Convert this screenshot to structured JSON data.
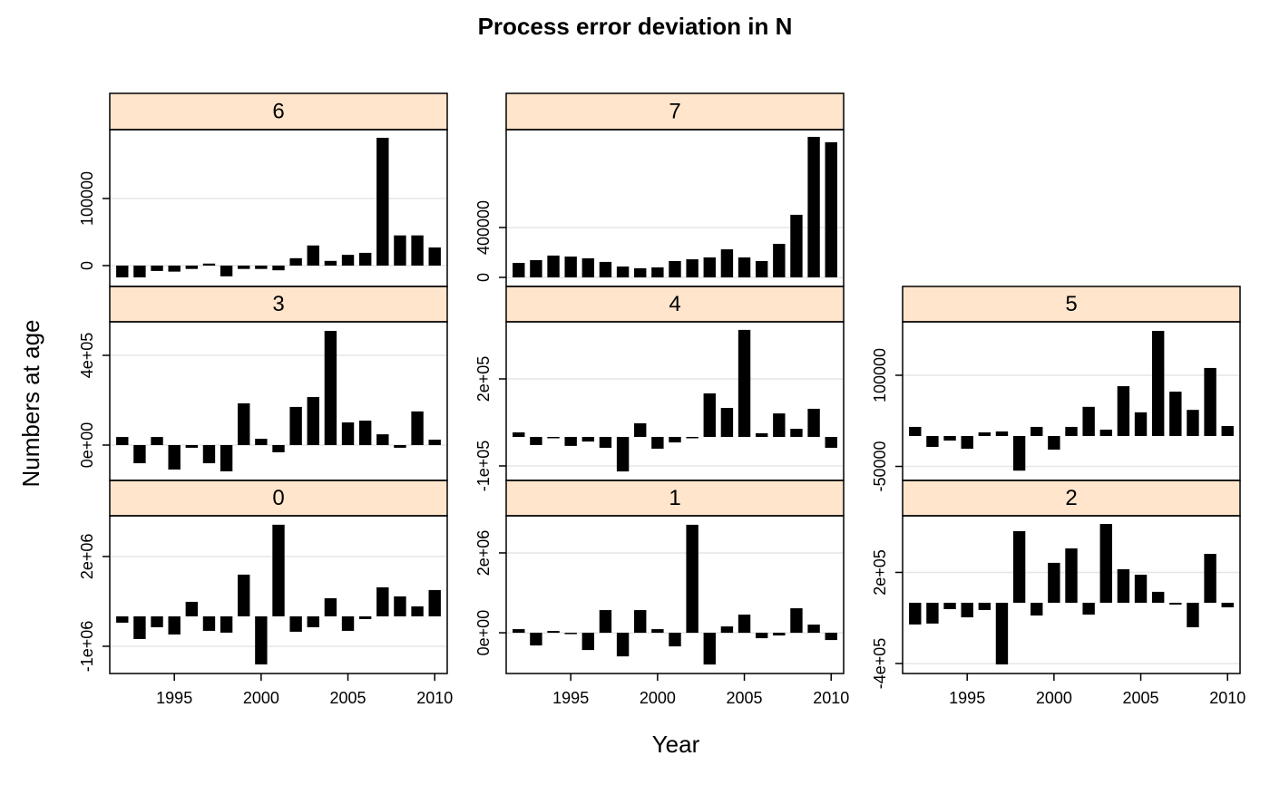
{
  "title": "Process error deviation in N",
  "x_label": "Year",
  "y_label": "Numbers at age",
  "chart_data": [
    {
      "type": "bar",
      "title": "0",
      "color": "#000000",
      "grid": true,
      "x": [
        1992,
        1993,
        1994,
        1995,
        1996,
        1997,
        1998,
        1999,
        2000,
        2001,
        2002,
        2003,
        2004,
        2005,
        2006,
        2007,
        2008,
        2009,
        2010
      ],
      "values": [
        -212000,
        -758000,
        -364000,
        -606000,
        485000,
        -485000,
        -545000,
        1394000,
        -1606000,
        3061000,
        -515000,
        -364000,
        606000,
        -485000,
        -91000,
        970000,
        667000,
        333000,
        879000
      ],
      "xlim": [
        1991.28,
        2010.72
      ],
      "xticks": [
        1995,
        2000,
        2005,
        2010
      ],
      "ylim": [
        -1910000,
        3360000
      ],
      "yticks": [
        {
          "value": -1000000,
          "label": "-1e+06"
        },
        {
          "value": 2000000,
          "label": "2e+06"
        }
      ]
    },
    {
      "type": "bar",
      "title": "1",
      "color": "#000000",
      "grid": true,
      "x": [
        1992,
        1993,
        1994,
        1995,
        1996,
        1997,
        1998,
        1999,
        2000,
        2001,
        2002,
        2003,
        2004,
        2005,
        2006,
        2007,
        2008,
        2009,
        2010
      ],
      "values": [
        91000,
        -318000,
        45000,
        -23000,
        -432000,
        568000,
        -591000,
        568000,
        91000,
        -341000,
        2705000,
        -795000,
        159000,
        455000,
        -136000,
        -68000,
        614000,
        205000,
        -182000
      ],
      "xlim": [
        1991.28,
        2010.72
      ],
      "xticks": [
        1995,
        2000,
        2005,
        2010
      ],
      "ylim": [
        -1020000,
        2930000
      ],
      "yticks": [
        {
          "value": 0,
          "label": "0e+00"
        },
        {
          "value": 2000000,
          "label": "2e+06"
        }
      ]
    },
    {
      "type": "bar",
      "title": "2",
      "color": "#000000",
      "grid": true,
      "x": [
        1992,
        1993,
        1994,
        1995,
        1996,
        1997,
        1998,
        1999,
        2000,
        2001,
        2002,
        2003,
        2004,
        2005,
        2006,
        2007,
        2008,
        2009,
        2010
      ],
      "values": [
        -143000,
        -137000,
        -42000,
        -96000,
        -48000,
        -406000,
        472000,
        -84000,
        263000,
        358000,
        -78000,
        519000,
        221000,
        185000,
        72000,
        -12000,
        -161000,
        322000,
        -30000
      ],
      "xlim": [
        1991.28,
        2010.72
      ],
      "xticks": [
        1995,
        2000,
        2005,
        2010
      ],
      "ylim": [
        -466000,
        573000
      ],
      "yticks": [
        {
          "value": -400000,
          "label": "-4e+05"
        },
        {
          "value": 200000,
          "label": "2e+05"
        }
      ]
    },
    {
      "type": "bar",
      "title": "3",
      "color": "#000000",
      "grid": true,
      "x": [
        1992,
        1993,
        1994,
        1995,
        1996,
        1997,
        1998,
        1999,
        2000,
        2001,
        2002,
        2003,
        2004,
        2005,
        2006,
        2007,
        2008,
        2009,
        2010
      ],
      "values": [
        36000,
        -81000,
        36000,
        -109000,
        -12000,
        -81000,
        -117000,
        186000,
        28000,
        -32000,
        170000,
        214000,
        509000,
        101000,
        109000,
        48000,
        -12000,
        150000,
        24000
      ],
      "xlim": [
        1991.28,
        2010.72
      ],
      "ylim": [
        -157600,
        549500
      ],
      "yticks": [
        {
          "value": 0,
          "label": "0e+00"
        },
        {
          "value": 400000,
          "label": "4e+05"
        }
      ]
    },
    {
      "type": "bar",
      "title": "4",
      "color": "#000000",
      "grid": true,
      "x": [
        1992,
        1993,
        1994,
        1995,
        1996,
        1997,
        1998,
        1999,
        2000,
        2001,
        2002,
        2003,
        2004,
        2005,
        2006,
        2007,
        2008,
        2009,
        2010
      ],
      "values": [
        15600,
        -28000,
        -3000,
        -31000,
        -16000,
        -37500,
        -119000,
        47000,
        -40600,
        -19000,
        -3000,
        150000,
        100000,
        369000,
        12500,
        81000,
        28000,
        97000,
        -37500
      ],
      "xlim": [
        1991.28,
        2010.72
      ],
      "ylim": [
        -150000,
        396900
      ],
      "yticks": [
        {
          "value": -100000,
          "label": "-1e+05"
        },
        {
          "value": 200000,
          "label": "2e+05"
        }
      ]
    },
    {
      "type": "bar",
      "title": "5",
      "color": "#000000",
      "grid": true,
      "x": [
        1992,
        1993,
        1994,
        1995,
        1996,
        1997,
        1998,
        1999,
        2000,
        2001,
        2002,
        2003,
        2004,
        2005,
        2006,
        2007,
        2008,
        2009,
        2010
      ],
      "values": [
        15000,
        -18000,
        -7500,
        -21000,
        6000,
        7500,
        -57000,
        15000,
        -22400,
        15000,
        48000,
        10500,
        82000,
        39000,
        173000,
        73000,
        43000,
        112000,
        16400
      ],
      "xlim": [
        1991.28,
        2010.72
      ],
      "ylim": [
        -73100,
        188000
      ],
      "yticks": [
        -50000,
        100000
      ]
    },
    {
      "type": "bar",
      "title": "6",
      "color": "#000000",
      "grid": true,
      "x": [
        1992,
        1993,
        1994,
        1995,
        1996,
        1997,
        1998,
        1999,
        2000,
        2001,
        2002,
        2003,
        2004,
        2005,
        2006,
        2007,
        2008,
        2009,
        2010
      ],
      "values": [
        -17600,
        -17600,
        -8000,
        -9000,
        -5000,
        3000,
        -16000,
        -5000,
        -5000,
        -7000,
        11000,
        30000,
        7000,
        16000,
        19000,
        190500,
        45000,
        45000,
        27000
      ],
      "xlim": [
        1991.28,
        2010.72
      ],
      "ylim": [
        -31100,
        202700
      ],
      "yticks": [
        0,
        100000
      ]
    },
    {
      "type": "bar",
      "title": "7",
      "color": "#000000",
      "grid": true,
      "x": [
        1992,
        1993,
        1994,
        1995,
        1996,
        1997,
        1998,
        1999,
        2000,
        2001,
        2002,
        2003,
        2004,
        2005,
        2006,
        2007,
        2008,
        2009,
        2010
      ],
      "values": [
        116000,
        138000,
        175000,
        167000,
        153000,
        124000,
        87000,
        73000,
        80000,
        131000,
        145000,
        160000,
        225000,
        160000,
        131000,
        269000,
        502000,
        1127000,
        1084000
      ],
      "xlim": [
        1991.28,
        2010.72
      ],
      "ylim": [
        -72700,
        1185000
      ],
      "yticks": [
        0,
        400000
      ]
    }
  ]
}
